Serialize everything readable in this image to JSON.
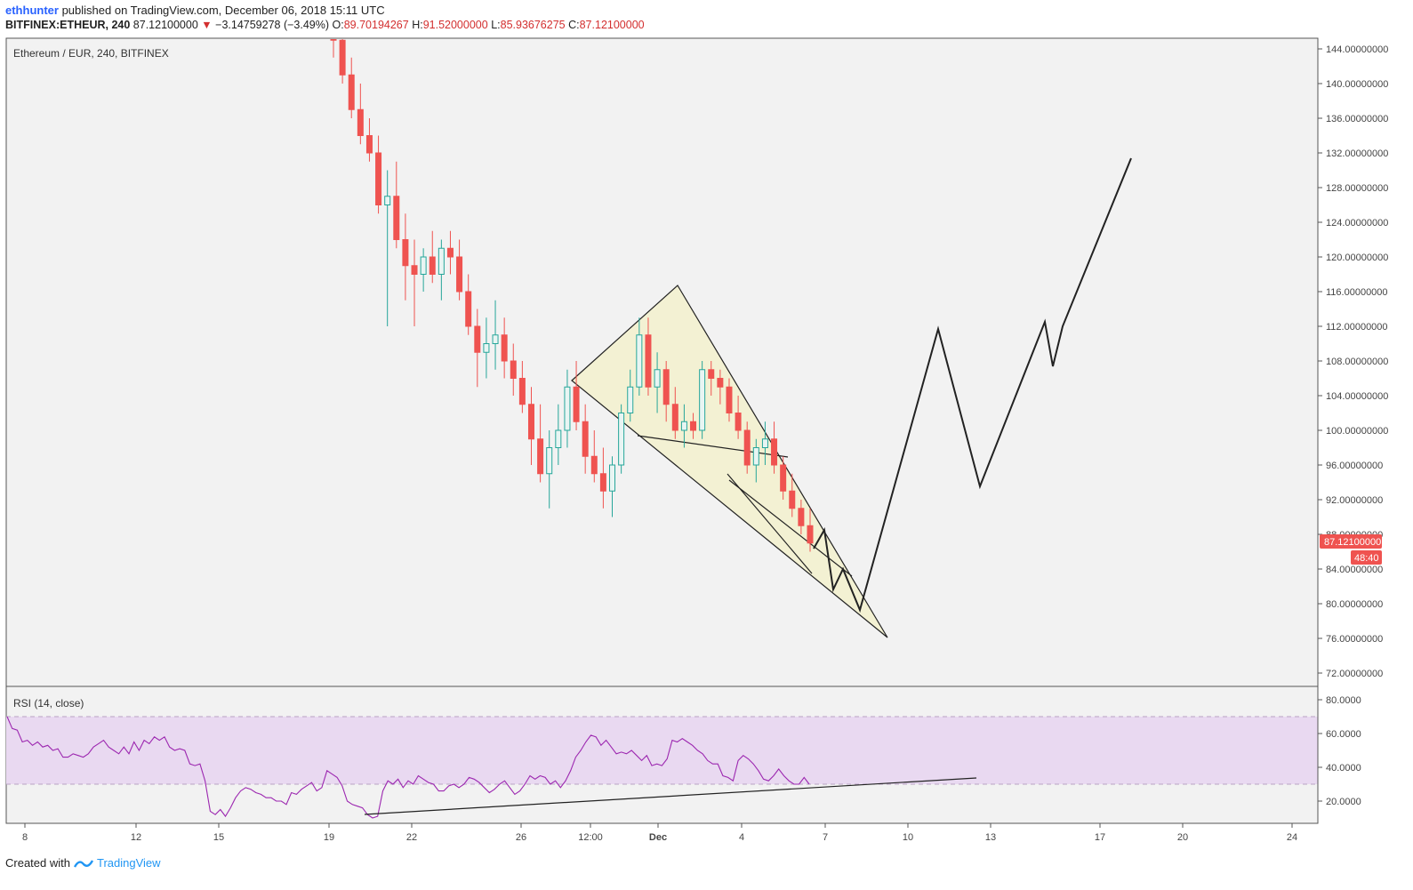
{
  "header": {
    "user": "ethhunter",
    "published": "published on TradingView.com, December 06, 2018 15:11 UTC",
    "symbol": "BITFINEX:ETHEUR, 240",
    "last": "87.12100000",
    "change_arrow": "▼",
    "change": "−3.14759278 (−3.49%)",
    "o_label": "O:",
    "o": "89.70194267",
    "h_label": "H:",
    "h": "91.52000000",
    "l_label": "L:",
    "l": "85.93676275",
    "c_label": "C:",
    "c": "87.12100000"
  },
  "main_pane": {
    "legend": "Ethereum / EUR, 240, BITFINEX"
  },
  "rsi_pane": {
    "legend": "RSI (14, close)"
  },
  "price_badge": {
    "price": "87.12100000",
    "countdown": "48:40"
  },
  "footer": {
    "created": "Created with",
    "brand": "TradingView",
    "logo_icon": "tradingview-logo-icon"
  },
  "colors": {
    "up": "#26a69a",
    "down": "#ef5350",
    "pattern_fill": "#f5f3d0",
    "rsi_band": "#e8d8f2",
    "rsi_line": "#9c27b0"
  },
  "chart_data": [
    {
      "type": "candlestick",
      "title": "Ethereum / EUR, 240, BITFINEX",
      "y_ticks": [
        "144.00000000",
        "140.00000000",
        "136.00000000",
        "132.00000000",
        "128.00000000",
        "124.00000000",
        "120.00000000",
        "116.00000000",
        "112.00000000",
        "108.00000000",
        "104.00000000",
        "100.00000000",
        "96.00000000",
        "92.00000000",
        "88.00000000",
        "84.00000000",
        "80.00000000",
        "76.00000000",
        "72.00000000"
      ],
      "ylim": [
        70.5,
        145.2
      ],
      "x_ticks": [
        "8",
        "12",
        "15",
        "19",
        "22",
        "26",
        "12:00",
        "Dec",
        "4",
        "7",
        "10",
        "13",
        "17",
        "20",
        "24"
      ],
      "ohlc": [
        [
          146,
          150,
          143,
          145
        ],
        [
          145,
          147,
          140,
          141
        ],
        [
          141,
          143,
          136,
          137
        ],
        [
          137,
          140,
          133,
          134
        ],
        [
          134,
          136,
          131,
          132
        ],
        [
          132,
          134,
          125,
          126
        ],
        [
          126,
          130,
          112,
          127
        ],
        [
          127,
          131,
          121,
          122
        ],
        [
          122,
          125,
          115,
          119
        ],
        [
          119,
          122,
          112,
          118
        ],
        [
          118,
          121,
          116,
          120
        ],
        [
          120,
          123,
          117,
          118
        ],
        [
          118,
          122,
          115,
          121
        ],
        [
          121,
          123,
          118,
          120
        ],
        [
          120,
          122,
          115,
          116
        ],
        [
          116,
          118,
          111,
          112
        ],
        [
          112,
          114,
          105,
          109
        ],
        [
          109,
          113,
          106,
          110
        ],
        [
          110,
          115,
          107,
          111
        ],
        [
          111,
          113,
          106,
          108
        ],
        [
          108,
          110,
          104,
          106
        ],
        [
          106,
          108,
          102,
          103
        ],
        [
          103,
          105,
          96,
          99
        ],
        [
          99,
          103,
          94,
          95
        ],
        [
          95,
          100,
          91,
          98
        ],
        [
          98,
          103,
          96,
          100
        ],
        [
          100,
          107,
          98,
          105
        ],
        [
          105,
          108,
          100,
          101
        ],
        [
          101,
          103,
          95,
          97
        ],
        [
          97,
          100,
          94,
          95
        ],
        [
          95,
          98,
          91,
          93
        ],
        [
          93,
          97,
          90,
          96
        ],
        [
          96,
          103,
          95,
          102
        ],
        [
          102,
          107,
          101,
          105
        ],
        [
          105,
          113,
          104,
          111
        ],
        [
          111,
          113,
          104,
          105
        ],
        [
          105,
          109,
          102,
          107
        ],
        [
          107,
          108,
          101,
          103
        ],
        [
          103,
          105,
          99,
          100
        ],
        [
          100,
          103,
          98,
          101
        ],
        [
          101,
          102,
          99,
          100
        ],
        [
          100,
          108,
          99,
          107
        ],
        [
          107,
          108,
          104,
          106
        ],
        [
          106,
          107,
          103,
          105
        ],
        [
          105,
          106,
          101,
          102
        ],
        [
          102,
          104,
          99,
          100
        ],
        [
          100,
          101,
          95,
          96
        ],
        [
          96,
          99,
          94,
          98
        ],
        [
          98,
          101,
          96,
          99
        ],
        [
          99,
          101,
          95,
          96
        ],
        [
          96,
          97,
          92,
          93
        ],
        [
          93,
          95,
          90,
          91
        ],
        [
          91,
          92,
          88,
          89
        ],
        [
          89,
          91,
          86,
          87
        ]
      ],
      "drawings": {
        "wedge_pattern": [
          [
            "Nov 28 06:00",
            105.5
          ],
          [
            "Dec 02",
            116.5
          ],
          [
            "Dec 08 12:00",
            76.0
          ]
        ],
        "projection_path": [
          [
            88.5
          ],
          [
            81.5
          ],
          [
            84.0
          ],
          [
            79.0
          ],
          [
            111.5
          ],
          [
            93.5
          ],
          [
            112.5
          ],
          [
            107.5
          ],
          [
            112.0
          ],
          [
            131.0
          ]
        ]
      }
    },
    {
      "type": "line",
      "title": "RSI (14, close)",
      "y_ticks": [
        "80.0000",
        "60.0000",
        "40.0000",
        "20.0000"
      ],
      "ylim": [
        13,
        83
      ],
      "bands": [
        30,
        70
      ],
      "values": [
        70,
        63,
        62,
        55,
        56,
        53,
        55,
        52,
        53,
        50,
        51,
        46,
        46,
        48,
        47,
        46,
        48,
        52,
        54,
        56,
        52,
        50,
        48,
        52,
        48,
        55,
        50,
        56,
        54,
        58,
        56,
        58,
        52,
        50,
        51,
        50,
        42,
        41,
        42,
        32,
        14,
        12,
        15,
        11,
        16,
        22,
        26,
        28,
        27,
        25,
        24,
        22,
        22,
        20,
        20,
        18,
        25,
        24,
        27,
        29,
        31,
        26,
        28,
        38,
        36,
        34,
        29,
        20,
        18,
        17,
        16,
        12,
        10,
        11,
        26,
        32,
        30,
        33,
        28,
        32,
        30,
        35,
        33,
        31,
        30,
        26,
        26,
        29,
        30,
        28,
        30,
        34,
        33,
        31,
        28,
        25,
        27,
        30,
        32,
        28,
        24,
        26,
        30,
        35,
        33,
        35,
        34,
        30,
        32,
        28,
        32,
        38,
        46,
        50,
        55,
        59,
        58,
        53,
        56,
        52,
        48,
        49,
        48,
        50,
        47,
        44,
        47,
        41,
        42,
        41,
        45,
        56,
        55,
        57,
        55,
        53,
        50,
        48,
        44,
        42,
        42,
        35,
        34,
        32,
        44,
        47,
        45,
        42,
        38,
        33,
        32,
        35,
        39,
        35,
        32,
        30,
        30,
        34,
        30
      ]
    }
  ]
}
